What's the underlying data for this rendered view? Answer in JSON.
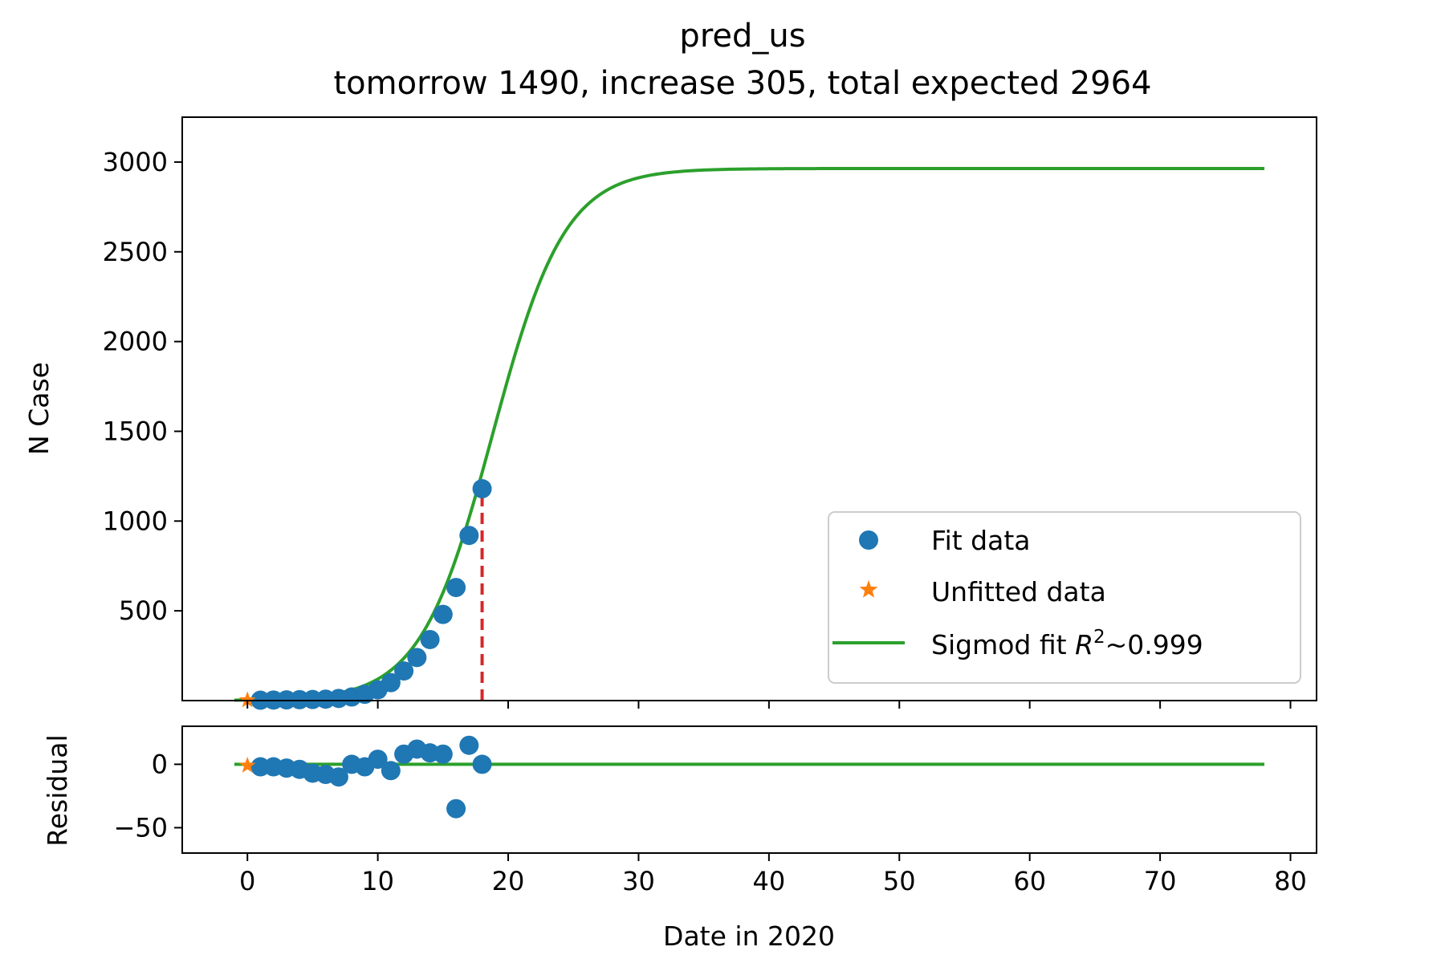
{
  "chart_data": [
    {
      "panel": "main",
      "type": "line",
      "title": "pred_us",
      "subtitle": "tomorrow 1490, increase 305, total expected 2964",
      "xlabel": "",
      "ylabel": "N Case",
      "xlim": [
        -5,
        82
      ],
      "ylim": [
        0,
        3250
      ],
      "yticks": [
        500,
        1000,
        1500,
        2000,
        2500,
        3000
      ],
      "grid": false,
      "legend_position": "lower-right",
      "legend": [
        {
          "label": "Fit data",
          "marker": "circle",
          "color": "#1f77b4"
        },
        {
          "label": "Unfitted data",
          "marker": "star",
          "color": "#ff7f0e"
        },
        {
          "label": "Sigmod fit ",
          "math_symbol": "R",
          "superscript": "2",
          "suffix": "~0.999",
          "marker": "line",
          "color": "#2ca02c"
        }
      ],
      "series": [
        {
          "name": "Fit data",
          "kind": "scatter",
          "color": "#1f77b4",
          "x": [
            1,
            2,
            3,
            4,
            5,
            6,
            7,
            8,
            9,
            10,
            11,
            12,
            13,
            14,
            15,
            16,
            17,
            18
          ],
          "y": [
            2,
            3,
            4,
            5,
            6,
            8,
            12,
            20,
            35,
            60,
            100,
            165,
            240,
            340,
            480,
            630,
            920,
            1180
          ]
        },
        {
          "name": "Unfitted data",
          "kind": "scatter",
          "marker": "star",
          "color": "#ff7f0e",
          "x": [
            0
          ],
          "y": [
            2
          ]
        },
        {
          "name": "Sigmod fit",
          "kind": "line",
          "color": "#2ca02c",
          "function": "logistic",
          "K": 2964,
          "midpoint": 18.8,
          "rate": 0.36,
          "x_range": [
            -1,
            78
          ]
        },
        {
          "name": "today",
          "kind": "vline",
          "style": "dashed",
          "color": "#d62728",
          "x": 18,
          "y_range": [
            0,
            1180
          ]
        }
      ]
    },
    {
      "panel": "residual",
      "type": "scatter",
      "xlabel": "Date in 2020",
      "ylabel": "Residual",
      "xlim": [
        -5,
        82
      ],
      "ylim": [
        -70,
        30
      ],
      "xticks": [
        0,
        10,
        20,
        30,
        40,
        50,
        60,
        70,
        80
      ],
      "yticks": [
        0,
        -50
      ],
      "ytick_labels": [
        "0",
        "−50"
      ],
      "grid": false,
      "series": [
        {
          "name": "Fit data",
          "kind": "scatter",
          "color": "#1f77b4",
          "x": [
            1,
            2,
            3,
            4,
            5,
            6,
            7,
            8,
            9,
            10,
            11,
            12,
            13,
            14,
            15,
            16,
            17,
            18
          ],
          "y": [
            -2,
            -2,
            -3,
            -4,
            -7,
            -8,
            -10,
            0,
            -2,
            4,
            -5,
            8,
            12,
            9,
            8,
            -35,
            15,
            0
          ]
        },
        {
          "name": "Unfitted data",
          "kind": "scatter",
          "marker": "star",
          "color": "#ff7f0e",
          "x": [
            0
          ],
          "y": [
            -1
          ]
        },
        {
          "name": "zero",
          "kind": "hline",
          "color": "#2ca02c",
          "y": 0,
          "x_range": [
            -1,
            78
          ]
        }
      ]
    }
  ]
}
